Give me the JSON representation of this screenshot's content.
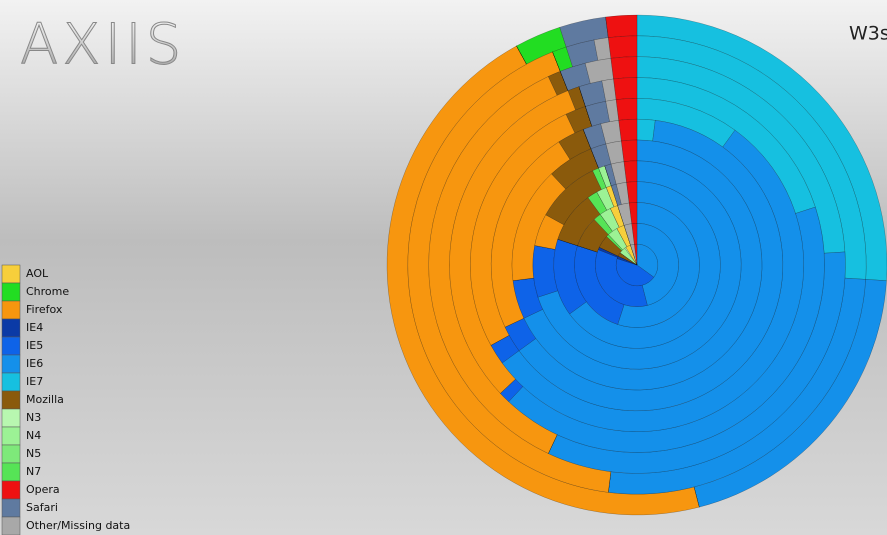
{
  "logo": "AXIIS",
  "chart_data": {
    "type": "radial-stacked",
    "title": "W3s",
    "series": [
      {
        "name": "AOL",
        "color": "#f7cf3b",
        "values": [
          4,
          3,
          2,
          1,
          0,
          0,
          0,
          0,
          0,
          0,
          0,
          0
        ]
      },
      {
        "name": "Chrome",
        "color": "#22dd22",
        "values": [
          0,
          0,
          0,
          0,
          0,
          0,
          0,
          0,
          0,
          0,
          1,
          3
        ]
      },
      {
        "name": "Firefox",
        "color": "#f7960f",
        "values": [
          0,
          0,
          0,
          0,
          5,
          15,
          23,
          26,
          31,
          36,
          42,
          46
        ]
      },
      {
        "name": "IE4",
        "color": "#0b3aa6",
        "values": [
          2,
          1,
          0,
          0,
          0,
          0,
          0,
          0,
          0,
          0,
          0,
          0
        ]
      },
      {
        "name": "IE5",
        "color": "#0e63e8",
        "values": [
          45,
          35,
          25,
          15,
          8,
          5,
          3,
          2,
          1,
          0,
          0,
          0
        ]
      },
      {
        "name": "IE6",
        "color": "#1490ea",
        "values": [
          35,
          46,
          55,
          65,
          70,
          68,
          63,
          55,
          42,
          33,
          26,
          20
        ]
      },
      {
        "name": "IE7",
        "color": "#16c0e0",
        "values": [
          0,
          0,
          0,
          0,
          0,
          0,
          2,
          10,
          20,
          24,
          26,
          26
        ]
      },
      {
        "name": "Mozilla",
        "color": "#8a5a0c",
        "values": [
          3,
          5,
          8,
          10,
          10,
          6,
          3,
          2,
          1,
          1,
          0,
          0
        ]
      },
      {
        "name": "N3",
        "color": "#b8f7b0",
        "values": [
          1,
          0,
          0,
          0,
          0,
          0,
          0,
          0,
          0,
          0,
          0,
          0
        ]
      },
      {
        "name": "N4",
        "color": "#9cf295",
        "values": [
          5,
          4,
          3,
          2,
          1,
          0,
          0,
          0,
          0,
          0,
          0,
          0
        ]
      },
      {
        "name": "N5",
        "color": "#7ee97a",
        "values": [
          0,
          0,
          0,
          0,
          0,
          0,
          0,
          0,
          0,
          0,
          0,
          0
        ]
      },
      {
        "name": "N7",
        "color": "#56e456",
        "values": [
          0,
          1,
          2,
          2,
          1,
          0,
          0,
          0,
          0,
          0,
          0,
          0
        ]
      },
      {
        "name": "Opera",
        "color": "#ee1111",
        "values": [
          2,
          2,
          2,
          2,
          2,
          2,
          2,
          2,
          2,
          2,
          2,
          2
        ]
      },
      {
        "name": "Safari",
        "color": "#5f7aa0",
        "values": [
          0,
          0,
          0,
          1,
          1,
          2,
          2,
          2,
          2,
          2,
          2,
          3
        ]
      },
      {
        "name": "Other/Missing data",
        "color": "#a8a8a8",
        "values": [
          3,
          3,
          3,
          2,
          2,
          2,
          2,
          1,
          1,
          2,
          1,
          0
        ]
      }
    ]
  }
}
